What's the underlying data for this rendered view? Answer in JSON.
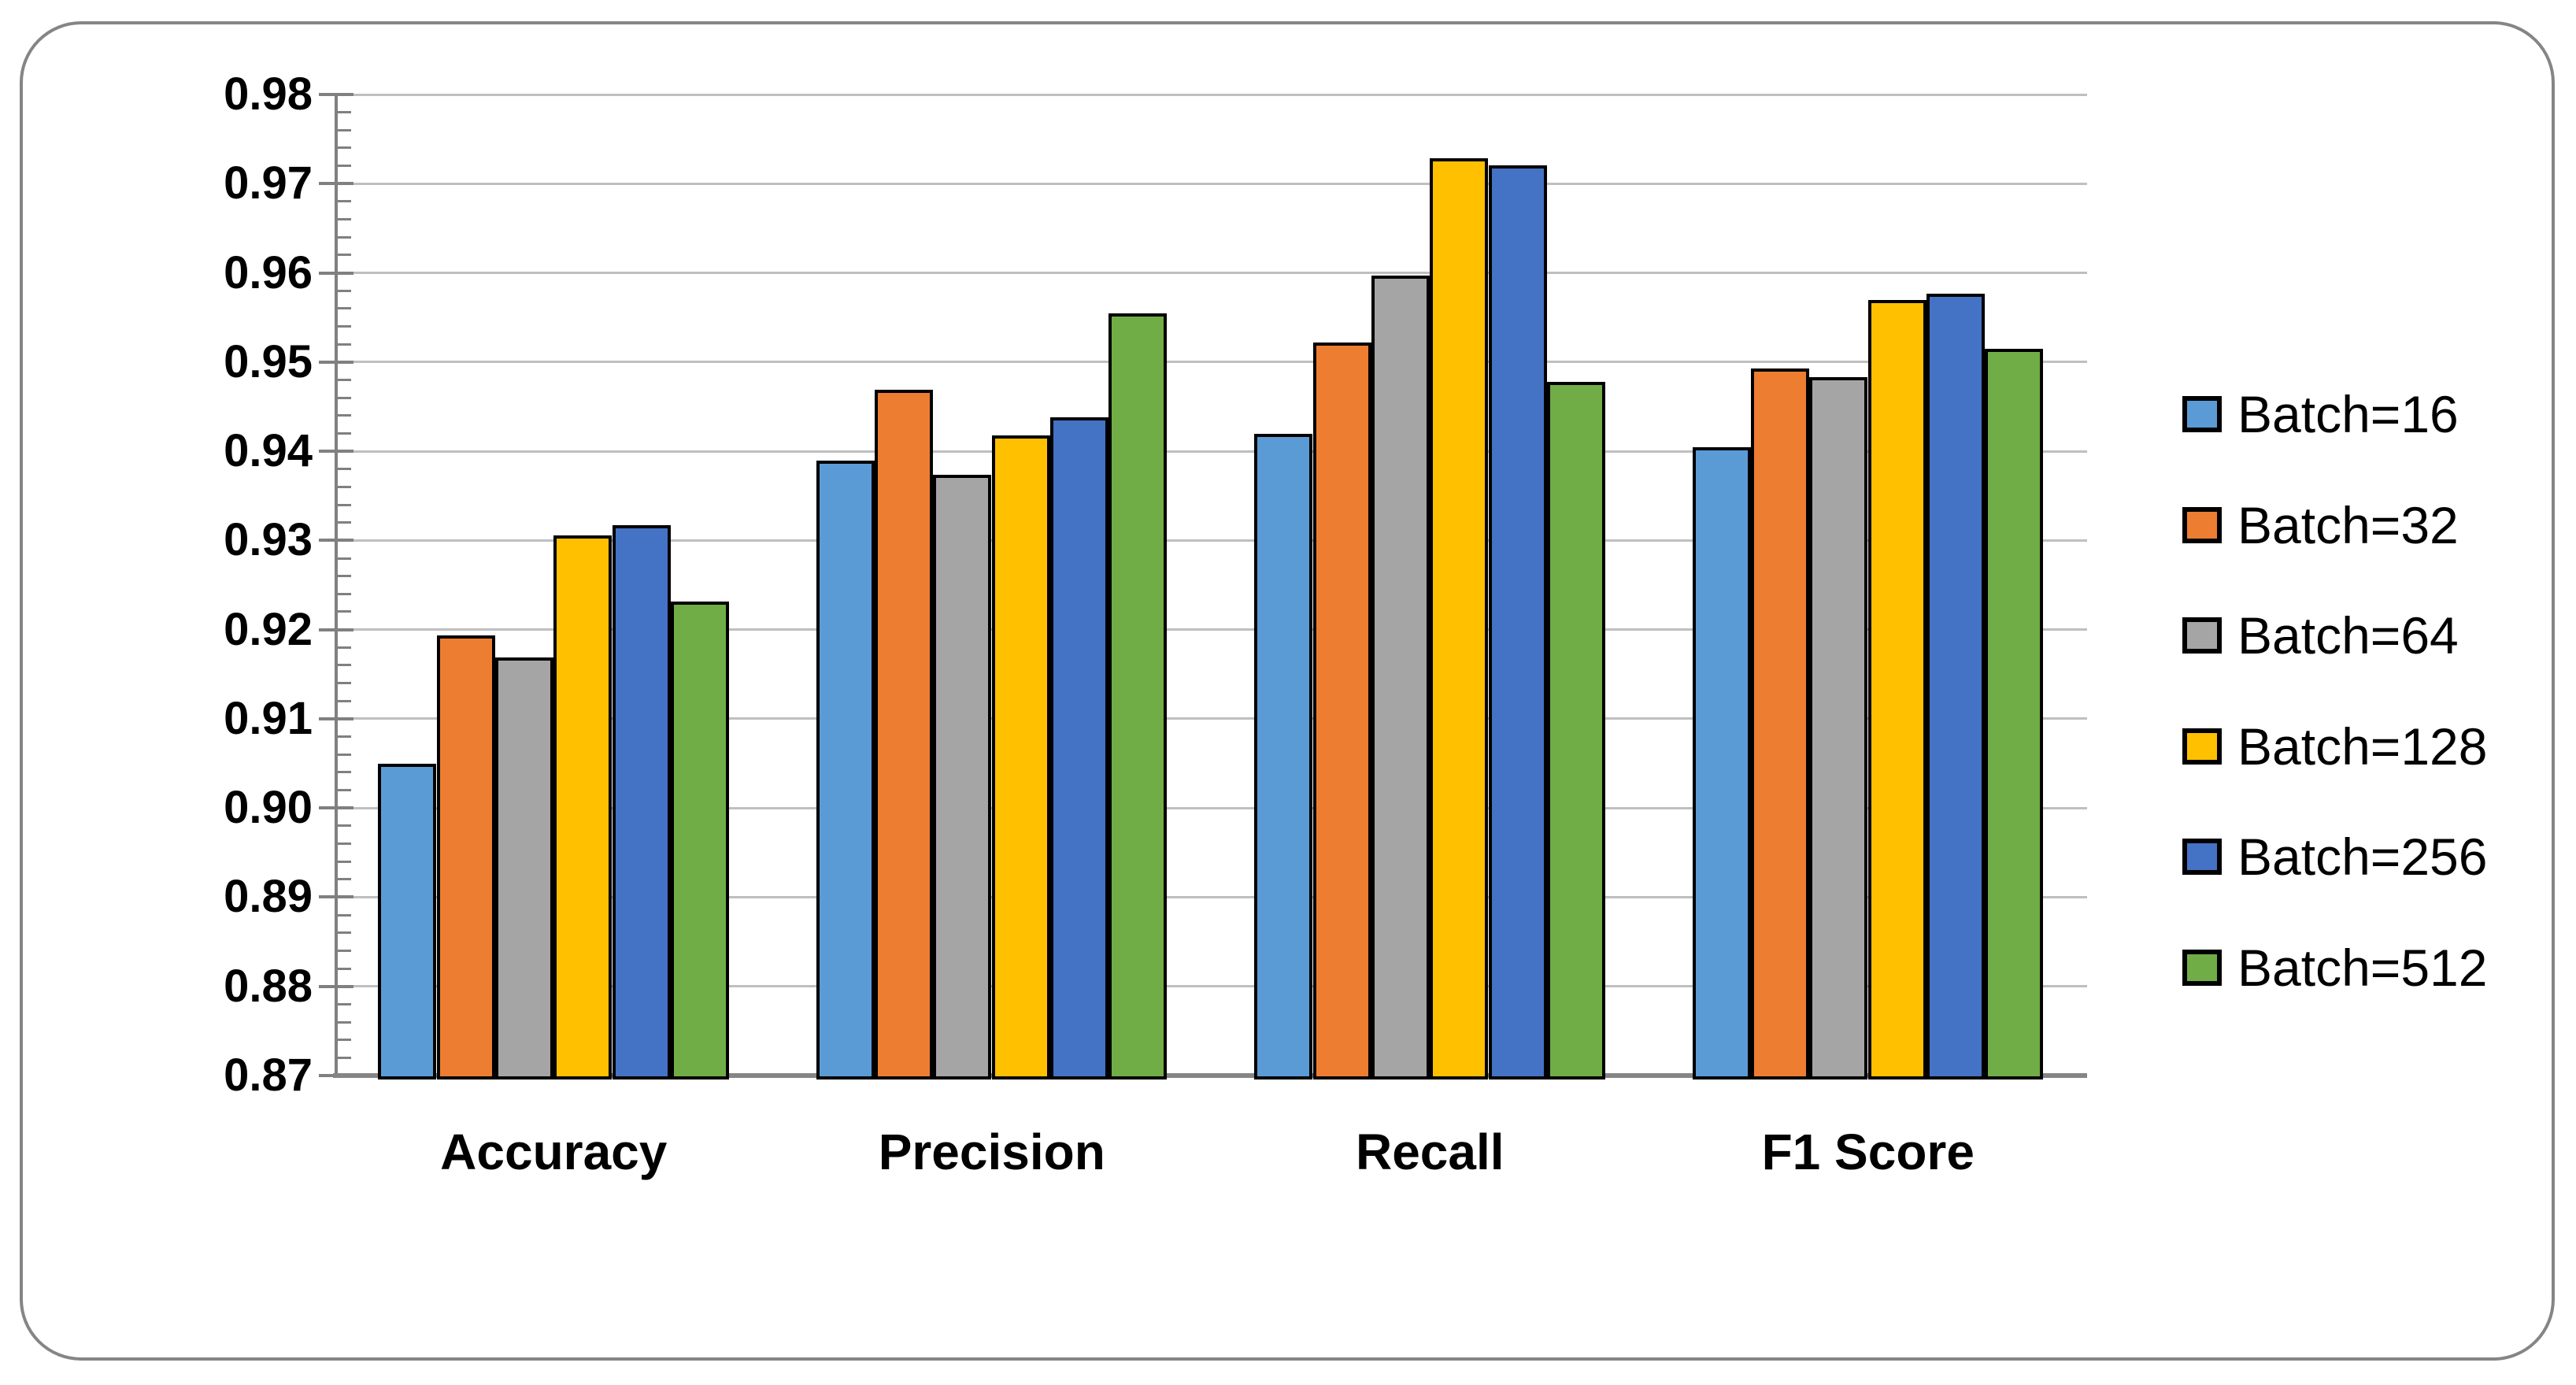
{
  "chart_data": {
    "type": "bar",
    "title": "",
    "xlabel": "",
    "ylabel": "",
    "categories": [
      "Accuracy",
      "Precision",
      "Recall",
      "F1 Score"
    ],
    "series": [
      {
        "name": "Batch=16",
        "color": "#5B9BD5",
        "values": [
          0.9048,
          0.9388,
          0.9418,
          0.9403
        ]
      },
      {
        "name": "Batch=32",
        "color": "#ED7D31",
        "values": [
          0.9192,
          0.9467,
          0.952,
          0.9491
        ]
      },
      {
        "name": "Batch=64",
        "color": "#A5A5A5",
        "values": [
          0.9167,
          0.9372,
          0.9595,
          0.9481
        ]
      },
      {
        "name": "Batch=128",
        "color": "#FFC000",
        "values": [
          0.9304,
          0.9416,
          0.9727,
          0.9568
        ]
      },
      {
        "name": "Batch=256",
        "color": "#4472C4",
        "values": [
          0.9315,
          0.9436,
          0.9719,
          0.9575
        ]
      },
      {
        "name": "Batch=512",
        "color": "#70AD47",
        "values": [
          0.923,
          0.9553,
          0.9476,
          0.9513
        ]
      }
    ],
    "ylim": [
      0.87,
      0.98
    ],
    "ytick_step": 0.01,
    "yminor_step": 0.002,
    "ytick_labels": [
      "0.87",
      "0.88",
      "0.89",
      "0.90",
      "0.91",
      "0.92",
      "0.93",
      "0.94",
      "0.95",
      "0.96",
      "0.97",
      "0.98"
    ],
    "grid": true,
    "legend_position": "right",
    "colors": {
      "bar_border": "#000000",
      "gridline": "#BFBFBF",
      "axis": "#808080",
      "frame_border": "#858585",
      "text": "#000000",
      "background": "#FFFFFF"
    }
  }
}
